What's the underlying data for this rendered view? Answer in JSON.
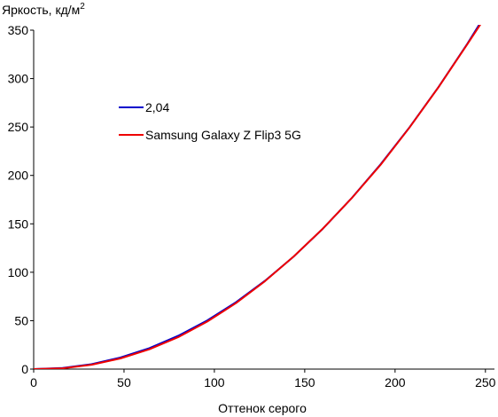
{
  "chart_data": {
    "type": "line",
    "title": "",
    "ylabel": "Яркость, кд/м",
    "ylabel_sup": "2",
    "xlabel": "Оттенок серого",
    "xlim": [
      0,
      255
    ],
    "ylim": [
      0,
      350
    ],
    "xticks": [
      0,
      50,
      100,
      150,
      200,
      250
    ],
    "yticks": [
      0,
      50,
      100,
      150,
      200,
      250,
      300,
      350
    ],
    "grid": false,
    "legend_position": "upper-left-inside",
    "series": [
      {
        "name": "2,04",
        "color": "#0000cc",
        "x": [
          0,
          16,
          32,
          48,
          64,
          80,
          96,
          112,
          128,
          144,
          160,
          176,
          192,
          208,
          224,
          240,
          255
        ],
        "y": [
          0,
          1.2,
          5.1,
          11.9,
          21.6,
          34.4,
          50.2,
          69.1,
          91.2,
          116.4,
          144.9,
          176.6,
          211.5,
          249.7,
          291.2,
          336.0,
          381.0
        ]
      },
      {
        "name": "Samsung Galaxy Z Flip3 5G",
        "color": "#ee0000",
        "x": [
          0,
          16,
          32,
          48,
          64,
          80,
          96,
          112,
          128,
          144,
          160,
          176,
          192,
          208,
          224,
          240,
          255
        ],
        "y": [
          0,
          0.8,
          4.5,
          11.0,
          20.4,
          33.0,
          49.0,
          68.2,
          90.8,
          116.5,
          145.0,
          176.5,
          211.0,
          249.5,
          291.0,
          335.5,
          378.0
        ]
      }
    ]
  }
}
